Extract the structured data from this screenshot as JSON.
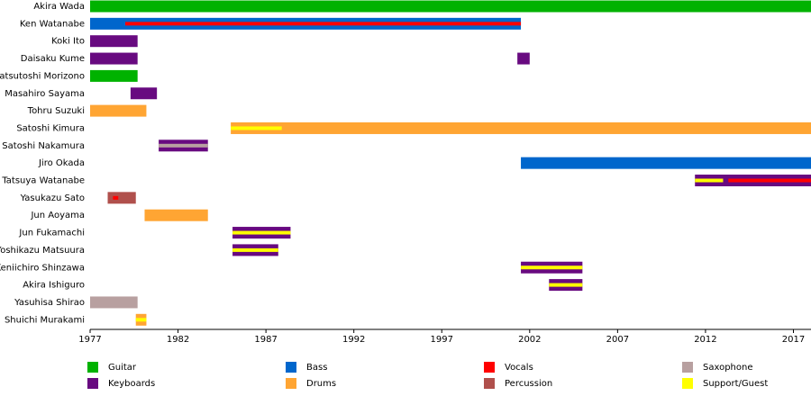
{
  "chart_data": {
    "type": "timeline",
    "categories": [
      "Akira Wada",
      "Ken Watanabe",
      "Koki Ito",
      "Daisaku Kume",
      "Katsutoshi Morizono",
      "Masahiro Sayama",
      "Tohru Suzuki",
      "Satoshi Kimura",
      "Satoshi Nakamura",
      "Jiro Okada",
      "Tatsuya Watanabe",
      "Yasukazu Sato",
      "Jun Aoyama",
      "Jun Fukamachi",
      "Yoshikazu Matsuura",
      "Keniichiro Shinzawa",
      "Akira Ishiguro",
      "Yasuhisa Shirao",
      "Shuichi Murakami"
    ],
    "xlim": [
      1977,
      2018
    ],
    "xticks": [
      1977,
      1982,
      1987,
      1992,
      1997,
      2002,
      2007,
      2012,
      2017
    ],
    "grid": false,
    "series": [
      {
        "name": "Guitar",
        "color": "#00b200",
        "periods": [
          [
            {
              "start": 1977,
              "end": 2018
            }
          ],
          [],
          [],
          [],
          [
            {
              "start": 1977,
              "end": 1979.7
            }
          ],
          [],
          [],
          [],
          [],
          [],
          [],
          [],
          [],
          [],
          [],
          [],
          [],
          [],
          []
        ]
      },
      {
        "name": "Keyboards",
        "color": "#680a80",
        "periods": [
          [],
          [],
          [
            {
              "start": 1977,
              "end": 1979.7
            }
          ],
          [
            {
              "start": 1977,
              "end": 1979.7
            },
            {
              "start": 2001.3,
              "end": 2002
            }
          ],
          [],
          [
            {
              "start": 1979.3,
              "end": 1980.8
            }
          ],
          [],
          [],
          [
            {
              "start": 1980.9,
              "end": 1983.7
            }
          ],
          [],
          [
            {
              "start": 2011.4,
              "end": 2018
            }
          ],
          [],
          [],
          [
            {
              "start": 1985.1,
              "end": 1988.4
            }
          ],
          [
            {
              "start": 1985.1,
              "end": 1987.7
            }
          ],
          [
            {
              "start": 2001.5,
              "end": 2005
            }
          ],
          [
            {
              "start": 2003.1,
              "end": 2005
            }
          ],
          [],
          []
        ]
      },
      {
        "name": "Bass",
        "color": "#0066cc",
        "periods": [
          [],
          [
            {
              "start": 1977,
              "end": 2001.5
            }
          ],
          [],
          [],
          [],
          [],
          [],
          [],
          [],
          [
            {
              "start": 2001.5,
              "end": 2018
            }
          ],
          [],
          [],
          [],
          [],
          [],
          [],
          [],
          [],
          []
        ]
      },
      {
        "name": "Drums",
        "color": "#ffa533",
        "periods": [
          [],
          [],
          [],
          [],
          [],
          [],
          [
            {
              "start": 1977,
              "end": 1980.2
            }
          ],
          [
            {
              "start": 1985,
              "end": 2018
            }
          ],
          [],
          [],
          [],
          [],
          [
            {
              "start": 1980.1,
              "end": 1983.7
            }
          ],
          [],
          [],
          [],
          [],
          [],
          [
            {
              "start": 1979.6,
              "end": 1980.2
            }
          ]
        ]
      },
      {
        "name": "Vocals",
        "color": "#ff0000",
        "periods": [
          [],
          [
            {
              "start": 1979,
              "end": 2001.5,
              "stripe": true
            }
          ],
          [],
          [],
          [],
          [],
          [],
          [],
          [],
          [],
          [
            {
              "start": 2013.3,
              "end": 2018,
              "stripe": true
            }
          ],
          [
            {
              "start": 1978.3,
              "end": 1978.6,
              "stripe": true
            }
          ],
          [],
          [],
          [],
          [],
          [],
          [],
          []
        ]
      },
      {
        "name": "Percussion",
        "color": "#b0504c",
        "periods": [
          [],
          [],
          [],
          [],
          [],
          [],
          [],
          [],
          [],
          [],
          [],
          [
            {
              "start": 1978,
              "end": 1979.6
            }
          ],
          [],
          [],
          [],
          [],
          [],
          [],
          []
        ]
      },
      {
        "name": "Saxophone",
        "color": "#b8a0a0",
        "periods": [
          [],
          [],
          [],
          [],
          [],
          [],
          [],
          [],
          [
            {
              "start": 1980.9,
              "end": 1983.7,
              "stripe": true
            }
          ],
          [],
          [],
          [],
          [],
          [],
          [],
          [],
          [],
          [
            {
              "start": 1977,
              "end": 1979.7
            }
          ],
          []
        ]
      },
      {
        "name": "Support/Guest",
        "color": "#ffff00",
        "periods": [
          [],
          [],
          [],
          [],
          [],
          [],
          [],
          [
            {
              "start": 1985,
              "end": 1987.9,
              "stripe": true
            }
          ],
          [],
          [],
          [
            {
              "start": 2011.4,
              "end": 2013,
              "stripe": true
            }
          ],
          [],
          [],
          [
            {
              "start": 1985.1,
              "end": 1988.4,
              "stripe": true
            }
          ],
          [
            {
              "start": 1985.1,
              "end": 1987.7,
              "stripe": true
            }
          ],
          [
            {
              "start": 2001.5,
              "end": 2005,
              "stripe": true
            }
          ],
          [
            {
              "start": 2003.1,
              "end": 2005,
              "stripe": true
            }
          ],
          [],
          [
            {
              "start": 1979.6,
              "end": 1980.2,
              "stripe": true
            }
          ]
        ]
      }
    ]
  }
}
